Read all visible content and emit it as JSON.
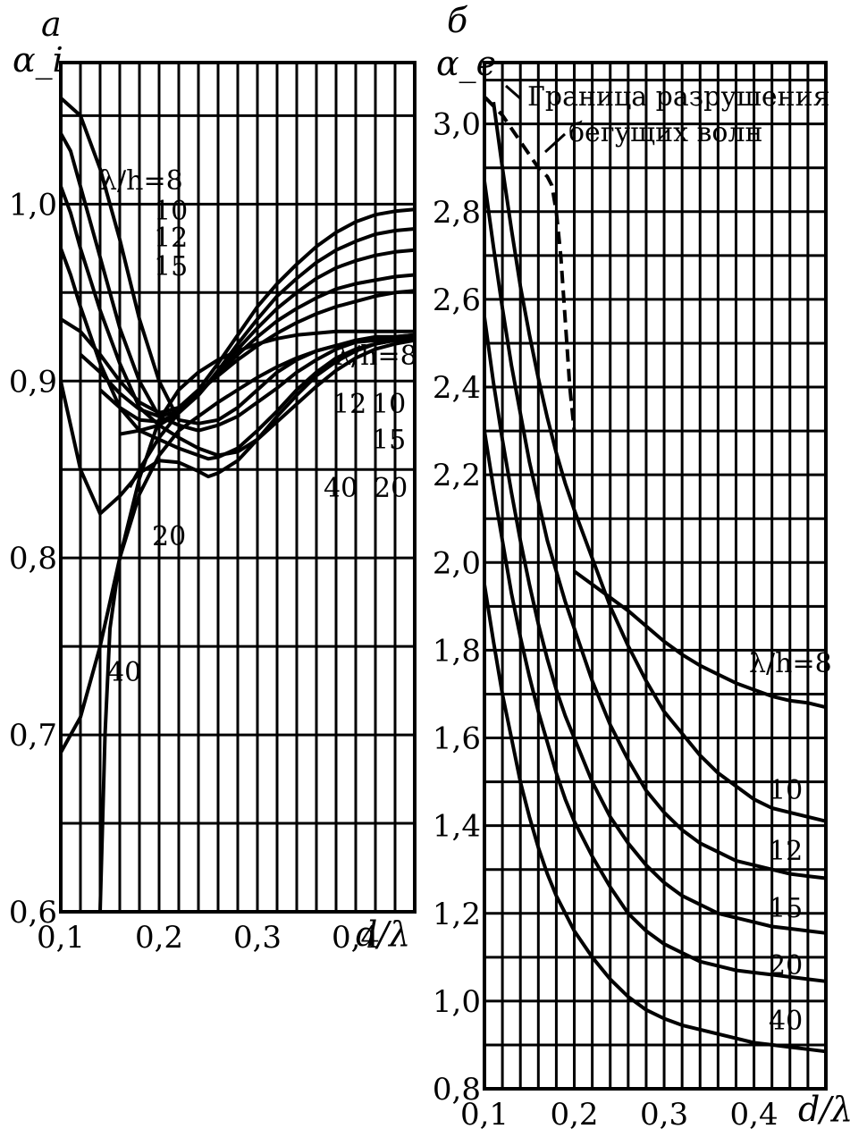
{
  "chart_data": [
    {
      "type": "line",
      "panel_label": "а",
      "ylabel": "α_i",
      "xlabel": "d/λ",
      "xlim": [
        0.1,
        0.46
      ],
      "ylim": [
        0.6,
        1.08
      ],
      "xticks": [
        0.1,
        0.2,
        0.3,
        0.4
      ],
      "xtick_labels": [
        "0,1",
        "0,2",
        "0,3",
        "0,4"
      ],
      "yticks": [
        0.6,
        0.7,
        0.8,
        0.9,
        1.0
      ],
      "ytick_labels": [
        "0,6",
        "0,7",
        "0,8",
        "0,9",
        "1,0"
      ],
      "grid": true,
      "falling_labels": [
        "λ/h=8",
        "10",
        "12",
        "15",
        "20",
        "40"
      ],
      "rising_labels": [
        "λ/h=8",
        "10",
        "12",
        "15",
        "20",
        "40"
      ],
      "falling_series": [
        {
          "name": "λ/h=8",
          "x": [
            0.1,
            0.12,
            0.14,
            0.16,
            0.18,
            0.2,
            0.22,
            0.24,
            0.26,
            0.28,
            0.3,
            0.32,
            0.34,
            0.36,
            0.38,
            0.4,
            0.42,
            0.44,
            0.46
          ],
          "y": [
            1.06,
            1.05,
            1.02,
            0.98,
            0.935,
            0.9,
            0.878,
            0.876,
            0.878,
            0.885,
            0.895,
            0.905,
            0.912,
            0.917,
            0.92,
            0.923,
            0.925,
            0.925,
            0.926
          ]
        },
        {
          "name": "10",
          "x": [
            0.1,
            0.11,
            0.12,
            0.14,
            0.16,
            0.18,
            0.2,
            0.22,
            0.24,
            0.26,
            0.28,
            0.3,
            0.32,
            0.34,
            0.36,
            0.38,
            0.4,
            0.42,
            0.44,
            0.46
          ],
          "y": [
            1.04,
            1.03,
            1.01,
            0.97,
            0.93,
            0.9,
            0.88,
            0.875,
            0.872,
            0.875,
            0.88,
            0.888,
            0.896,
            0.905,
            0.912,
            0.918,
            0.922,
            0.924,
            0.925,
            0.926
          ]
        },
        {
          "name": "12",
          "x": [
            0.1,
            0.11,
            0.12,
            0.14,
            0.16,
            0.18,
            0.2,
            0.22,
            0.24,
            0.26,
            0.28,
            0.3,
            0.32,
            0.34,
            0.36,
            0.38,
            0.4,
            0.42,
            0.44,
            0.46
          ],
          "y": [
            1.01,
            0.995,
            0.975,
            0.94,
            0.91,
            0.885,
            0.875,
            0.868,
            0.862,
            0.858,
            0.86,
            0.867,
            0.877,
            0.887,
            0.897,
            0.906,
            0.913,
            0.918,
            0.921,
            0.923
          ]
        },
        {
          "name": "15",
          "x": [
            0.1,
            0.11,
            0.12,
            0.14,
            0.16,
            0.18,
            0.2,
            0.22,
            0.24,
            0.25,
            0.26,
            0.28,
            0.3,
            0.32,
            0.34,
            0.36,
            0.38,
            0.4,
            0.42,
            0.44,
            0.46
          ],
          "y": [
            0.975,
            0.96,
            0.942,
            0.91,
            0.885,
            0.872,
            0.867,
            0.862,
            0.858,
            0.856,
            0.857,
            0.862,
            0.872,
            0.883,
            0.895,
            0.905,
            0.913,
            0.918,
            0.921,
            0.923,
            0.924
          ]
        },
        {
          "name": "20",
          "x": [
            0.1,
            0.11,
            0.12,
            0.14,
            0.16,
            0.18,
            0.2,
            0.22,
            0.24,
            0.25,
            0.26,
            0.28,
            0.3,
            0.32,
            0.34,
            0.36,
            0.38,
            0.4,
            0.42,
            0.44,
            0.46
          ],
          "y": [
            0.9,
            0.875,
            0.85,
            0.825,
            0.835,
            0.848,
            0.855,
            0.854,
            0.849,
            0.846,
            0.848,
            0.855,
            0.867,
            0.88,
            0.892,
            0.903,
            0.911,
            0.917,
            0.921,
            0.923,
            0.924
          ]
        },
        {
          "name": "40",
          "x": [
            0.14,
            0.145,
            0.15,
            0.16,
            0.18,
            0.2,
            0.22,
            0.24,
            0.26,
            0.28,
            0.3,
            0.32,
            0.34,
            0.36,
            0.38,
            0.4,
            0.42,
            0.44,
            0.46
          ],
          "y": [
            0.6,
            0.7,
            0.76,
            0.8,
            0.836,
            0.858,
            0.872,
            0.88,
            0.888,
            0.895,
            0.902,
            0.908,
            0.913,
            0.917,
            0.92,
            0.922,
            0.923,
            0.924,
            0.925
          ]
        }
      ],
      "rising_series": [
        {
          "name": "λ/h=8",
          "x": [
            0.1,
            0.12,
            0.14,
            0.16,
            0.18,
            0.2,
            0.22,
            0.24,
            0.26,
            0.28,
            0.3,
            0.32,
            0.34,
            0.36,
            0.38,
            0.4,
            0.42,
            0.44,
            0.46
          ],
          "y": [
            0.935,
            0.928,
            0.915,
            0.9,
            0.888,
            0.882,
            0.885,
            0.895,
            0.91,
            0.926,
            0.942,
            0.955,
            0.966,
            0.976,
            0.984,
            0.99,
            0.994,
            0.996,
            0.997
          ]
        },
        {
          "name": "10",
          "x": [
            0.12,
            0.14,
            0.16,
            0.18,
            0.2,
            0.22,
            0.24,
            0.26,
            0.28,
            0.3,
            0.32,
            0.34,
            0.36,
            0.38,
            0.4,
            0.42,
            0.44,
            0.46
          ],
          "y": [
            0.915,
            0.905,
            0.893,
            0.884,
            0.88,
            0.883,
            0.892,
            0.906,
            0.921,
            0.935,
            0.948,
            0.958,
            0.967,
            0.974,
            0.979,
            0.983,
            0.985,
            0.986
          ]
        },
        {
          "name": "12",
          "x": [
            0.14,
            0.16,
            0.18,
            0.2,
            0.22,
            0.24,
            0.26,
            0.28,
            0.3,
            0.32,
            0.34,
            0.36,
            0.38,
            0.4,
            0.42,
            0.44,
            0.46
          ],
          "y": [
            0.895,
            0.885,
            0.878,
            0.877,
            0.882,
            0.892,
            0.905,
            0.918,
            0.93,
            0.941,
            0.95,
            0.958,
            0.964,
            0.968,
            0.971,
            0.973,
            0.974
          ]
        },
        {
          "name": "15",
          "x": [
            0.16,
            0.18,
            0.2,
            0.22,
            0.24,
            0.26,
            0.28,
            0.3,
            0.32,
            0.34,
            0.36,
            0.38,
            0.4,
            0.42,
            0.44,
            0.46
          ],
          "y": [
            0.87,
            0.872,
            0.875,
            0.882,
            0.893,
            0.904,
            0.915,
            0.925,
            0.934,
            0.941,
            0.947,
            0.952,
            0.955,
            0.957,
            0.959,
            0.96
          ]
        },
        {
          "name": "20",
          "x": [
            0.17,
            0.18,
            0.2,
            0.22,
            0.24,
            0.26,
            0.28,
            0.3,
            0.32,
            0.34,
            0.36,
            0.38,
            0.4,
            0.42,
            0.44,
            0.46
          ],
          "y": [
            0.84,
            0.85,
            0.868,
            0.882,
            0.894,
            0.903,
            0.912,
            0.92,
            0.927,
            0.933,
            0.938,
            0.942,
            0.945,
            0.948,
            0.95,
            0.951
          ]
        },
        {
          "name": "40",
          "x": [
            0.1,
            0.12,
            0.14,
            0.16,
            0.18,
            0.2,
            0.22,
            0.24,
            0.26,
            0.28,
            0.3,
            0.32,
            0.34,
            0.36,
            0.38,
            0.4,
            0.42,
            0.44,
            0.46
          ],
          "y": [
            0.69,
            0.71,
            0.75,
            0.8,
            0.845,
            0.878,
            0.895,
            0.905,
            0.912,
            0.917,
            0.921,
            0.924,
            0.926,
            0.927,
            0.928,
            0.928,
            0.928,
            0.928,
            0.928
          ]
        }
      ]
    },
    {
      "type": "line",
      "panel_label": "б",
      "ylabel": "α_e",
      "xlabel": "d/λ",
      "xlim": [
        0.1,
        0.48
      ],
      "ylim": [
        0.8,
        3.14
      ],
      "xticks": [
        0.1,
        0.2,
        0.3,
        0.4
      ],
      "xtick_labels": [
        "0,1",
        "0,2",
        "0,3",
        "0,4"
      ],
      "yticks": [
        0.8,
        1.0,
        1.2,
        1.4,
        1.6,
        1.8,
        2.0,
        2.2,
        2.4,
        2.6,
        2.8,
        3.0
      ],
      "ytick_labels": [
        "0,8",
        "1,0",
        "1,2",
        "1,4",
        "1,6",
        "1,8",
        "2,0",
        "2,2",
        "2,4",
        "2,6",
        "2,8",
        "3,0"
      ],
      "grid": true,
      "annotation": "Граница разрушения бегущих волн",
      "series": [
        {
          "name": "λ/h=8",
          "x": [
            0.2,
            0.22,
            0.24,
            0.26,
            0.28,
            0.3,
            0.32,
            0.34,
            0.36,
            0.38,
            0.4,
            0.42,
            0.44,
            0.46,
            0.48
          ],
          "y": [
            1.98,
            1.95,
            1.92,
            1.89,
            1.855,
            1.82,
            1.79,
            1.765,
            1.745,
            1.725,
            1.71,
            1.695,
            1.685,
            1.68,
            1.67
          ]
        },
        {
          "name": "10",
          "x": [
            0.11,
            0.12,
            0.13,
            0.14,
            0.15,
            0.16,
            0.17,
            0.18,
            0.19,
            0.2,
            0.22,
            0.24,
            0.26,
            0.28,
            0.3,
            0.32,
            0.34,
            0.36,
            0.38,
            0.4,
            0.42,
            0.44,
            0.46,
            0.48
          ],
          "y": [
            3.05,
            2.9,
            2.76,
            2.63,
            2.52,
            2.42,
            2.33,
            2.25,
            2.18,
            2.12,
            2.01,
            1.9,
            1.81,
            1.73,
            1.66,
            1.61,
            1.56,
            1.52,
            1.49,
            1.46,
            1.44,
            1.43,
            1.42,
            1.41
          ]
        },
        {
          "name": "12",
          "x": [
            0.1,
            0.11,
            0.12,
            0.13,
            0.14,
            0.15,
            0.16,
            0.17,
            0.18,
            0.19,
            0.2,
            0.22,
            0.24,
            0.26,
            0.28,
            0.3,
            0.32,
            0.34,
            0.36,
            0.38,
            0.4,
            0.42,
            0.44,
            0.46,
            0.48
          ],
          "y": [
            2.87,
            2.72,
            2.58,
            2.45,
            2.34,
            2.23,
            2.14,
            2.05,
            1.98,
            1.91,
            1.85,
            1.73,
            1.63,
            1.55,
            1.48,
            1.43,
            1.39,
            1.36,
            1.34,
            1.32,
            1.31,
            1.3,
            1.29,
            1.285,
            1.28
          ]
        },
        {
          "name": "15",
          "x": [
            0.1,
            0.11,
            0.12,
            0.13,
            0.14,
            0.15,
            0.16,
            0.17,
            0.18,
            0.19,
            0.2,
            0.22,
            0.24,
            0.26,
            0.28,
            0.3,
            0.32,
            0.34,
            0.36,
            0.38,
            0.4,
            0.42,
            0.44,
            0.46,
            0.48
          ],
          "y": [
            2.56,
            2.41,
            2.28,
            2.16,
            2.05,
            1.95,
            1.86,
            1.78,
            1.71,
            1.65,
            1.6,
            1.5,
            1.42,
            1.36,
            1.31,
            1.27,
            1.24,
            1.22,
            1.2,
            1.19,
            1.18,
            1.17,
            1.165,
            1.16,
            1.155
          ]
        },
        {
          "name": "20",
          "x": [
            0.1,
            0.11,
            0.12,
            0.13,
            0.14,
            0.15,
            0.16,
            0.17,
            0.18,
            0.19,
            0.2,
            0.22,
            0.24,
            0.26,
            0.28,
            0.3,
            0.32,
            0.34,
            0.36,
            0.38,
            0.4,
            0.42,
            0.44,
            0.46,
            0.48
          ],
          "y": [
            2.3,
            2.17,
            2.05,
            1.93,
            1.83,
            1.74,
            1.66,
            1.59,
            1.52,
            1.46,
            1.41,
            1.33,
            1.26,
            1.2,
            1.16,
            1.13,
            1.11,
            1.09,
            1.08,
            1.07,
            1.065,
            1.06,
            1.055,
            1.05,
            1.045
          ]
        },
        {
          "name": "40",
          "x": [
            0.1,
            0.11,
            0.12,
            0.13,
            0.14,
            0.15,
            0.16,
            0.17,
            0.18,
            0.19,
            0.2,
            0.22,
            0.24,
            0.26,
            0.28,
            0.3,
            0.32,
            0.34,
            0.36,
            0.38,
            0.4,
            0.42,
            0.44,
            0.46,
            0.48
          ],
          "y": [
            1.95,
            1.82,
            1.7,
            1.6,
            1.5,
            1.42,
            1.35,
            1.29,
            1.24,
            1.2,
            1.16,
            1.1,
            1.05,
            1.01,
            0.98,
            0.96,
            0.945,
            0.935,
            0.925,
            0.915,
            0.905,
            0.9,
            0.895,
            0.89,
            0.885
          ]
        }
      ],
      "boundary": {
        "x": [
          0.101,
          0.12,
          0.14,
          0.16,
          0.17,
          0.175,
          0.18,
          0.185,
          0.19,
          0.195,
          0.2
        ],
        "y": [
          3.06,
          3.02,
          2.96,
          2.9,
          2.88,
          2.86,
          2.8,
          2.7,
          2.55,
          2.4,
          2.3
        ]
      }
    }
  ]
}
